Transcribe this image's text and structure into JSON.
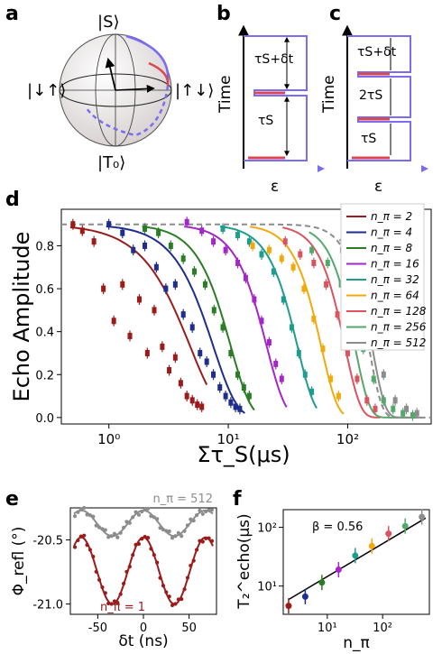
{
  "panels": {
    "a": "a",
    "b": "b",
    "c": "c",
    "d": "d",
    "e": "e",
    "f": "f"
  },
  "bloch": {
    "top": "|S⟩",
    "bottom": "|T₀⟩",
    "left": "|↓↑⟩",
    "right": "|↑↓⟩"
  },
  "pulse_b": {
    "ylabel": "Time",
    "xlabel": "ε",
    "label_top": "τS+δt",
    "label_bottom": "τS"
  },
  "pulse_c": {
    "xlabel": "ε",
    "label_top": "τS+δt",
    "label_mid": "2τS",
    "label_bottom": "τS"
  },
  "colors": {
    "n2": "#9b1b1b",
    "n4": "#1f2d8c",
    "n8": "#2a7d25",
    "n16": "#a326c9",
    "n32": "#1f9c8e",
    "n64": "#f2a90f",
    "n128": "#d9545f",
    "n256": "#53a86a",
    "n512": "#8c8c8c",
    "dashed": "#8c8c8c",
    "pulse_red": "#d9474f",
    "pulse_blue": "#7b6cf0"
  },
  "chart_data": [
    {
      "id": "d",
      "type": "scatter",
      "xscale": "log",
      "xlabel": "Στ_S(μs)",
      "ylabel": "Echo Amplitude",
      "xlim": [
        0.4,
        500
      ],
      "ylim": [
        -0.03,
        0.97
      ],
      "yticks": [
        "0.0",
        "0.2",
        "0.4",
        "0.6",
        "0.8"
      ],
      "xticks": [
        "10⁰",
        "10¹",
        "10²"
      ],
      "dashed_curve": {
        "A": 0.9,
        "T": 150,
        "beta": 4
      },
      "series": [
        {
          "name": "n_π = 2",
          "key": "n2",
          "T": 4.8,
          "beta": 1.8,
          "x": [
            0.5,
            0.6,
            0.75,
            0.9,
            1.1,
            1.3,
            1.5,
            1.8,
            2.1,
            2.4,
            2.8,
            3.2,
            3.6,
            4.0,
            4.5,
            5.0,
            5.5,
            6.0
          ],
          "y": [
            0.9,
            0.87,
            0.82,
            0.6,
            0.45,
            0.62,
            0.38,
            0.55,
            0.3,
            0.5,
            0.33,
            0.22,
            0.28,
            0.16,
            0.1,
            0.08,
            0.06,
            0.05
          ]
        },
        {
          "name": "n_π = 4",
          "key": "n4",
          "T": 7.5,
          "beta": 2.2,
          "x": [
            1.0,
            1.3,
            1.6,
            2.0,
            2.5,
            3.0,
            3.6,
            4.2,
            5.0,
            5.8,
            6.6,
            7.5,
            8.5,
            9.5,
            10.5,
            11.5,
            12.5
          ],
          "y": [
            0.9,
            0.86,
            0.78,
            0.8,
            0.7,
            0.6,
            0.62,
            0.48,
            0.42,
            0.3,
            0.26,
            0.2,
            0.14,
            0.1,
            0.07,
            0.05,
            0.04
          ]
        },
        {
          "name": "n_π = 8",
          "key": "n8",
          "T": 10.5,
          "beta": 2.6,
          "x": [
            2.0,
            2.6,
            3.3,
            4.2,
            5.2,
            6.4,
            7.6,
            9.0,
            10.5,
            12.0,
            13.5,
            15.0
          ],
          "y": [
            0.88,
            0.86,
            0.8,
            0.74,
            0.68,
            0.62,
            0.5,
            0.42,
            0.3,
            0.2,
            0.14,
            0.1
          ]
        },
        {
          "name": "n_π = 16",
          "key": "n16",
          "T": 21,
          "beta": 2.8,
          "x": [
            4.5,
            6.0,
            7.5,
            9.5,
            12,
            14,
            16.5,
            19,
            22,
            25,
            28
          ],
          "y": [
            0.91,
            0.87,
            0.82,
            0.78,
            0.72,
            0.65,
            0.55,
            0.45,
            0.35,
            0.25,
            0.18
          ]
        },
        {
          "name": "n_π = 32",
          "key": "n32",
          "T": 38,
          "beta": 3.0,
          "x": [
            9,
            12,
            15,
            19,
            24,
            29,
            34,
            39,
            44,
            50
          ],
          "y": [
            0.88,
            0.85,
            0.82,
            0.76,
            0.68,
            0.55,
            0.42,
            0.3,
            0.2,
            0.12
          ]
        },
        {
          "name": "n_π = 64",
          "key": "n64",
          "T": 60,
          "beta": 3.2,
          "x": [
            16,
            22,
            28,
            35,
            43,
            52,
            62,
            72,
            84
          ],
          "y": [
            0.8,
            0.78,
            0.74,
            0.7,
            0.6,
            0.46,
            0.32,
            0.18,
            0.1
          ]
        },
        {
          "name": "n_π = 128",
          "key": "n128",
          "T": 95,
          "beta": 3.4,
          "x": [
            30,
            40,
            52,
            66,
            82,
            100,
            120,
            145,
            170
          ],
          "y": [
            0.82,
            0.76,
            0.72,
            0.62,
            0.48,
            0.3,
            0.18,
            0.08,
            0.04
          ]
        },
        {
          "name": "n_π = 256",
          "key": "n256",
          "T": 115,
          "beta": 3.6,
          "x": [
            50,
            68,
            88,
            110,
            135,
            165,
            200,
            240,
            290,
            350
          ],
          "y": [
            0.78,
            0.72,
            0.62,
            0.48,
            0.32,
            0.18,
            0.08,
            0.04,
            0.02,
            0.01
          ]
        },
        {
          "name": "n_π = 512",
          "key": "n512",
          "T": 160,
          "beta": 4.0,
          "x": [
            90,
            120,
            160,
            200,
            250,
            310,
            380
          ],
          "y": [
            0.78,
            0.62,
            0.42,
            0.2,
            0.08,
            0.04,
            0.02
          ]
        }
      ]
    },
    {
      "id": "e",
      "type": "line",
      "xlabel": "δt (ns)",
      "ylabel": "Φ_refl (°)",
      "xlim": [
        -80,
        80
      ],
      "ylim": [
        -21.08,
        -20.25
      ],
      "xticks": [
        -50,
        0,
        50
      ],
      "yticks": [
        -21.0,
        -20.5
      ],
      "series": [
        {
          "name": "n_π = 512",
          "key": "n512",
          "offset": -20.37,
          "amp": 0.1,
          "period": 34
        },
        {
          "name": "n_π = 1",
          "key": "n2",
          "offset": -20.74,
          "amp": 0.26,
          "period": 34
        }
      ]
    },
    {
      "id": "f",
      "type": "scatter",
      "xscale": "log",
      "yscale": "log",
      "xlabel": "n_π",
      "ylabel": "T₂^echo(μs)",
      "xlim": [
        1.6,
        700
      ],
      "ylim": [
        3.3,
        200
      ],
      "annotation": "β = 0.56",
      "fit": {
        "a": 4.0,
        "beta": 0.56
      },
      "points": [
        {
          "n": 2,
          "T2": 4.6,
          "key": "n2"
        },
        {
          "n": 4,
          "T2": 6.6,
          "key": "n4"
        },
        {
          "n": 8,
          "T2": 11.5,
          "key": "n8"
        },
        {
          "n": 16,
          "T2": 19,
          "key": "n16"
        },
        {
          "n": 32,
          "T2": 33,
          "key": "n32"
        },
        {
          "n": 64,
          "T2": 48,
          "key": "n64"
        },
        {
          "n": 128,
          "T2": 78,
          "key": "n128"
        },
        {
          "n": 256,
          "T2": 105,
          "key": "n256"
        },
        {
          "n": 512,
          "T2": 150,
          "key": "n512"
        }
      ]
    }
  ]
}
